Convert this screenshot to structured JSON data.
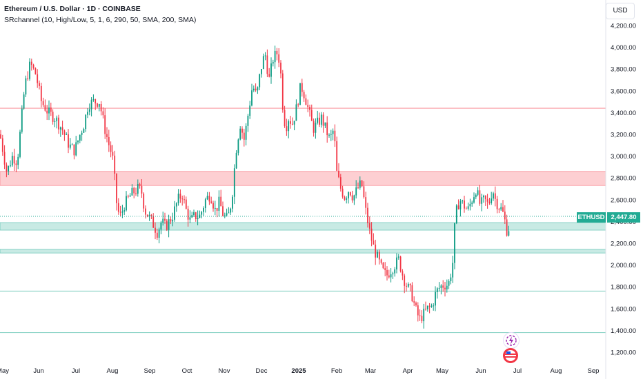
{
  "header": {
    "title": "Ethereum / U.S. Dollar · 1D · COINBASE",
    "indicator": "SRchannel (10, High/Low, 5, 1, 6, 290, 50, SMA, 200, SMA)"
  },
  "currency": "USD",
  "last_price": {
    "symbol": "ETHUSD",
    "value": "2,447.80"
  },
  "chart_data": {
    "type": "candlestick",
    "ylim": [
      1150,
      4300
    ],
    "x_tick_labels": [
      "May",
      "Jun",
      "Jul",
      "Aug",
      "Sep",
      "Oct",
      "Nov",
      "Dec",
      "2025",
      "Feb",
      "Mar",
      "Apr",
      "May",
      "Jun",
      "Jul",
      "Aug",
      "Sep"
    ],
    "y_tick_labels": [
      "1,200.00",
      "1,400.00",
      "1,600.00",
      "1,800.00",
      "2,000.00",
      "2,200.00",
      "2,400.00",
      "2,600.00",
      "2,800.00",
      "3,000.00",
      "3,200.00",
      "3,400.00",
      "3,600.00",
      "3,800.00",
      "4,000.00",
      "4,200.00"
    ],
    "y_tick_values": [
      1200,
      1400,
      1600,
      1800,
      2000,
      2200,
      2400,
      2600,
      2800,
      3000,
      3200,
      3400,
      3600,
      3800,
      4000,
      4200
    ],
    "sr_zones": [
      {
        "low": 2730,
        "high": 2860,
        "type": "resistance"
      },
      {
        "low": 2320,
        "high": 2390,
        "type": "support"
      },
      {
        "low": 2110,
        "high": 2145,
        "type": "support"
      }
    ],
    "sr_lines": [
      {
        "value": 3440,
        "type": "resistance"
      },
      {
        "value": 1760,
        "type": "support"
      },
      {
        "value": 1380,
        "type": "support"
      }
    ],
    "last_value": 2447.8,
    "key_points": [
      [
        0,
        3200
      ],
      [
        10,
        2850
      ],
      [
        18,
        3000
      ],
      [
        25,
        2950
      ],
      [
        36,
        3650
      ],
      [
        44,
        3850
      ],
      [
        52,
        3750
      ],
      [
        60,
        3500
      ],
      [
        70,
        3400
      ],
      [
        80,
        3350
      ],
      [
        90,
        3250
      ],
      [
        100,
        3100
      ],
      [
        108,
        3050
      ],
      [
        116,
        3200
      ],
      [
        122,
        3300
      ],
      [
        128,
        3480
      ],
      [
        136,
        3500
      ],
      [
        144,
        3500
      ],
      [
        152,
        3250
      ],
      [
        158,
        3100
      ],
      [
        163,
        3000
      ],
      [
        166,
        2800
      ],
      [
        170,
        2500
      ],
      [
        175,
        2450
      ],
      [
        180,
        2550
      ],
      [
        190,
        2650
      ],
      [
        200,
        2700
      ],
      [
        205,
        2680
      ],
      [
        210,
        2500
      ],
      [
        220,
        2400
      ],
      [
        228,
        2300
      ],
      [
        234,
        2400
      ],
      [
        240,
        2350
      ],
      [
        250,
        2450
      ],
      [
        258,
        2600
      ],
      [
        264,
        2650
      ],
      [
        270,
        2500
      ],
      [
        276,
        2400
      ],
      [
        282,
        2450
      ],
      [
        290,
        2450
      ],
      [
        298,
        2600
      ],
      [
        305,
        2650
      ],
      [
        312,
        2500
      ],
      [
        318,
        2580
      ],
      [
        324,
        2450
      ],
      [
        330,
        2420
      ],
      [
        336,
        2600
      ],
      [
        342,
        3050
      ],
      [
        348,
        3300
      ],
      [
        354,
        3150
      ],
      [
        360,
        3400
      ],
      [
        366,
        3650
      ],
      [
        372,
        3550
      ],
      [
        378,
        3800
      ],
      [
        384,
        3950
      ],
      [
        390,
        3700
      ],
      [
        396,
        3900
      ],
      [
        402,
        3950
      ],
      [
        406,
        3850
      ],
      [
        410,
        3450
      ],
      [
        414,
        3250
      ],
      [
        418,
        3350
      ],
      [
        424,
        3300
      ],
      [
        430,
        3450
      ],
      [
        436,
        3650
      ],
      [
        442,
        3550
      ],
      [
        448,
        3400
      ],
      [
        454,
        3250
      ],
      [
        460,
        3300
      ],
      [
        466,
        3350
      ],
      [
        472,
        3250
      ],
      [
        478,
        3150
      ],
      [
        484,
        3250
      ],
      [
        488,
        2850
      ],
      [
        494,
        2700
      ],
      [
        500,
        2620
      ],
      [
        506,
        2700
      ],
      [
        512,
        2620
      ],
      [
        518,
        2700
      ],
      [
        524,
        2750
      ],
      [
        530,
        2500
      ],
      [
        536,
        2300
      ],
      [
        542,
        2150
      ],
      [
        548,
        2050
      ],
      [
        554,
        1950
      ],
      [
        560,
        1900
      ],
      [
        566,
        1950
      ],
      [
        572,
        2000
      ],
      [
        578,
        2050
      ],
      [
        584,
        1900
      ],
      [
        590,
        1800
      ],
      [
        596,
        1750
      ],
      [
        602,
        1600
      ],
      [
        608,
        1500
      ],
      [
        614,
        1550
      ],
      [
        620,
        1600
      ],
      [
        626,
        1620
      ],
      [
        632,
        1750
      ],
      [
        638,
        1800
      ],
      [
        644,
        1820
      ],
      [
        650,
        1820
      ],
      [
        656,
        2000
      ],
      [
        660,
        2450
      ],
      [
        666,
        2600
      ],
      [
        672,
        2550
      ],
      [
        678,
        2500
      ],
      [
        684,
        2600
      ],
      [
        690,
        2700
      ],
      [
        696,
        2550
      ],
      [
        702,
        2600
      ],
      [
        708,
        2550
      ],
      [
        714,
        2700
      ],
      [
        718,
        2600
      ],
      [
        722,
        2550
      ],
      [
        728,
        2500
      ],
      [
        732,
        2400
      ],
      [
        736,
        2280
      ],
      [
        740,
        2447
      ]
    ]
  }
}
